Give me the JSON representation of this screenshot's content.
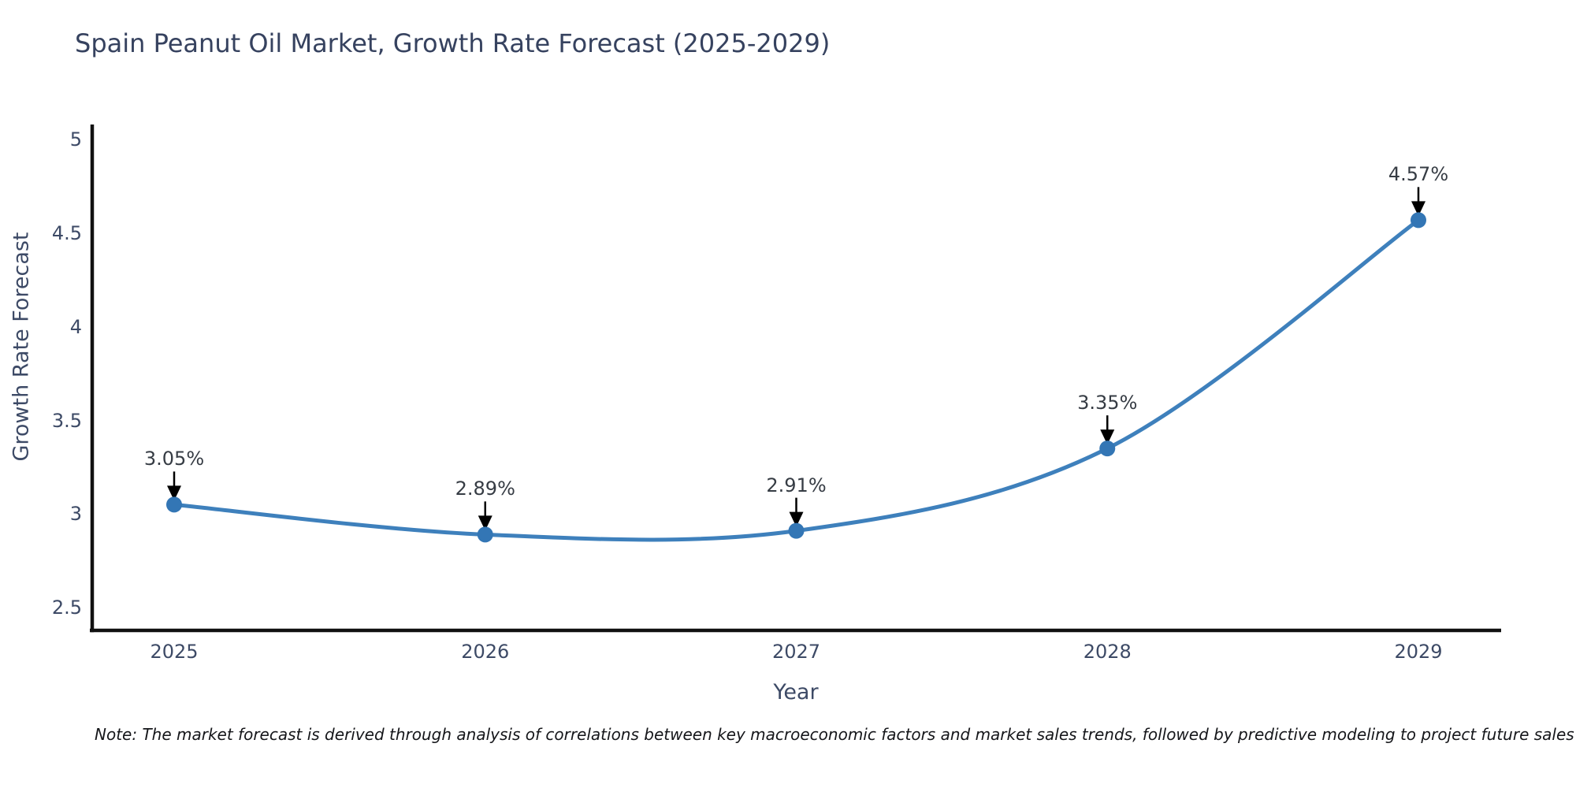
{
  "note": "Note: The market forecast is derived through analysis of correlations between key macroeconomic factors and market sales trends, followed by predictive modeling to project future sales",
  "chart_data": {
    "type": "line",
    "title": "Spain Peanut Oil Market, Growth Rate Forecast (2025-2029)",
    "xlabel": "Year",
    "ylabel": "Growth Rate Forecast",
    "x": [
      2025,
      2026,
      2027,
      2028,
      2029
    ],
    "values": [
      3.05,
      2.89,
      2.91,
      3.35,
      4.57
    ],
    "point_labels": [
      "3.05%",
      "2.89%",
      "2.91%",
      "3.35%",
      "4.57%"
    ],
    "xticks": [
      "2025",
      "2026",
      "2027",
      "2028",
      "2029"
    ],
    "yticks": [
      "2.5",
      "3",
      "3.5",
      "4",
      "4.5",
      "5"
    ],
    "ylim": [
      2.5,
      5
    ],
    "grid": false,
    "legend": "none",
    "line_shape": "spline",
    "marker": "circle",
    "annotation_arrows": "down",
    "colors": {
      "line": "#3e80bc",
      "marker": "#3376b5",
      "axis": "#111111",
      "arrow": "#000000",
      "tick_text": "#3d4a66",
      "title_text": "#36425f",
      "annotation_text": "#363c44"
    }
  }
}
